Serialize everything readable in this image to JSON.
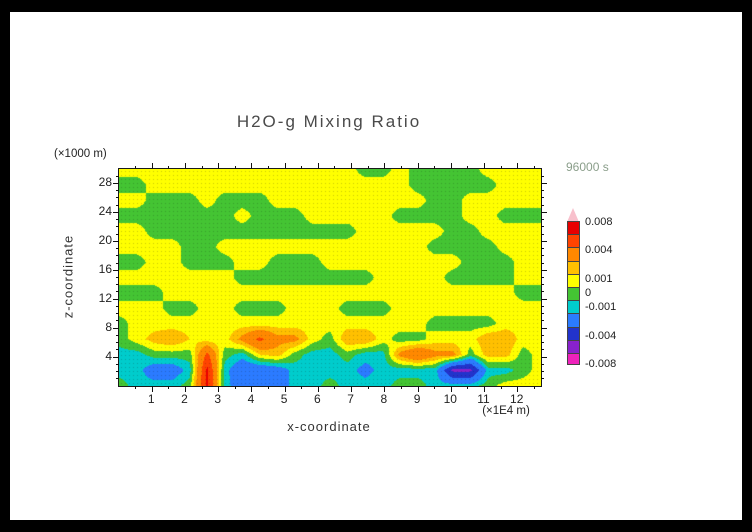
{
  "title": "H2O-g Mixing Ratio",
  "time_label": "96000 s",
  "axes": {
    "x_label": "x-coordinate",
    "x_unit": "(×1E4 m)",
    "y_label": "z-coordinate",
    "y_unit": "(×1000 m)"
  },
  "colors": {
    "paper": "#ffffff",
    "frame": "#000000",
    "axis_ink": "#111111",
    "text_ink": "#333333",
    "time_text": "#8a9e8a"
  },
  "colorbar": {
    "tick_labels": [
      "0.008",
      "0.004",
      "0.001",
      "0",
      "-0.001",
      "-0.004",
      "-0.008"
    ],
    "tick_levels": [
      0.008,
      0.004,
      0.001,
      0,
      -0.001,
      -0.004,
      -0.008
    ]
  },
  "chart_data": {
    "type": "heatmap",
    "title": "H2O-g Mixing Ratio",
    "time": "96000 s",
    "xlabel": "x-coordinate",
    "x_unit": "(×1E4 m)",
    "zlabel": "z-coordinate",
    "z_unit": "(×1000 m)",
    "x_range": [
      0,
      12.7
    ],
    "z_range": [
      0,
      30
    ],
    "x_ticks": [
      1,
      2,
      3,
      4,
      5,
      6,
      7,
      8,
      9,
      10,
      11,
      12
    ],
    "z_ticks": [
      4,
      8,
      12,
      16,
      20,
      24,
      28
    ],
    "grid": true,
    "legend_position": "right",
    "levels": [
      -0.008,
      -0.006,
      -0.004,
      -0.002,
      -0.001,
      0,
      0.001,
      0.002,
      0.004,
      0.006,
      0.008
    ],
    "level_colors": [
      "#EE22BB",
      "#8822CC",
      "#2233CC",
      "#2B7BFF",
      "#00CCCC",
      "#44C433",
      "#FFFF00",
      "#FFC000",
      "#FF8800",
      "#FF4400",
      "#E80000",
      "#F8C0CC"
    ],
    "value_scale": 0.001,
    "rows_top_to_bottom": true,
    "row_z_centers": [
      29,
      27,
      25,
      23,
      21,
      19,
      17,
      15,
      13,
      11,
      9,
      7,
      5,
      3,
      1
    ],
    "values_milli": [
      [
        0.5,
        0.5,
        0.5,
        0.5,
        0.5,
        0.5,
        0.5,
        0.5,
        0.5,
        0.5,
        0.5,
        0.5,
        0.5,
        0.5,
        -0.5,
        -0.5,
        0.5,
        -0.5,
        -0.5,
        -0.5,
        -0.5,
        0.5,
        0.5,
        0.5,
        0.5
      ],
      [
        -0.5,
        -0.5,
        0.5,
        0.5,
        0.5,
        0.5,
        0.5,
        0.5,
        0.5,
        0.5,
        0.5,
        0.5,
        0.5,
        0.5,
        0.5,
        0.5,
        0.5,
        -0.5,
        -0.5,
        -0.5,
        -0.5,
        -0.5,
        0.5,
        0.5,
        0.5
      ],
      [
        0.5,
        0.5,
        -0.5,
        -0.5,
        -0.5,
        0.5,
        -0.5,
        -0.5,
        -0.5,
        0.5,
        0.5,
        0.5,
        0.5,
        0.5,
        0.5,
        0.5,
        0.5,
        0.5,
        -0.5,
        -0.5,
        0.5,
        0.5,
        0.5,
        0.5,
        0.5
      ],
      [
        -0.5,
        -0.5,
        -0.5,
        -0.5,
        -0.5,
        -0.5,
        -0.5,
        0.5,
        -0.5,
        -0.5,
        -0.5,
        0.5,
        0.5,
        0.5,
        0.5,
        0.5,
        -0.5,
        -0.5,
        -0.5,
        -0.5,
        0.5,
        0.5,
        -0.5,
        -0.5,
        -0.5
      ],
      [
        0.5,
        0.5,
        -0.5,
        -0.5,
        -0.5,
        -0.5,
        -0.5,
        -0.5,
        -0.5,
        -0.5,
        -0.5,
        -0.5,
        -0.5,
        -0.5,
        0.5,
        0.5,
        0.5,
        0.5,
        0.5,
        -0.5,
        -0.5,
        0.5,
        0.5,
        0.5,
        0.5
      ],
      [
        0.5,
        0.5,
        0.5,
        0.5,
        -0.5,
        -0.5,
        0.5,
        0.5,
        0.5,
        0.5,
        0.5,
        0.5,
        0.5,
        0.5,
        0.5,
        0.5,
        0.5,
        0.5,
        -0.5,
        -0.5,
        -0.5,
        -0.5,
        0.5,
        0.5,
        0.5
      ],
      [
        -0.5,
        -0.5,
        0.5,
        0.5,
        -0.5,
        -0.5,
        -0.5,
        0.5,
        0.5,
        -0.5,
        -0.5,
        -0.5,
        0.5,
        0.5,
        0.5,
        0.5,
        0.5,
        0.5,
        0.5,
        0.5,
        -0.5,
        -0.5,
        -0.5,
        0.5,
        0.5
      ],
      [
        0.5,
        0.5,
        0.5,
        0.5,
        0.5,
        0.5,
        0.5,
        -0.5,
        -0.5,
        -0.5,
        -0.5,
        -0.5,
        -0.5,
        -0.5,
        -0.5,
        0.5,
        0.5,
        0.5,
        0.5,
        -0.5,
        -0.5,
        -0.5,
        -0.5,
        0.5,
        0.5
      ],
      [
        -0.5,
        -0.5,
        -0.5,
        0.5,
        0.5,
        0.5,
        0.5,
        0.5,
        0.5,
        0.5,
        0.5,
        0.5,
        0.5,
        0.5,
        0.5,
        0.5,
        0.5,
        0.5,
        0.5,
        0.5,
        0.5,
        0.5,
        0.5,
        -0.5,
        -0.5
      ],
      [
        0.5,
        0.5,
        0.5,
        -0.5,
        -0.5,
        0.5,
        0.5,
        -0.5,
        -0.5,
        -0.5,
        0.5,
        0.5,
        0.5,
        -0.5,
        -0.5,
        -0.5,
        0.5,
        0.5,
        0.5,
        0.5,
        0.5,
        0.5,
        0.5,
        0.5,
        0.5
      ],
      [
        -0.5,
        0.5,
        0.5,
        0.5,
        0.5,
        0.5,
        0.5,
        0.5,
        0.5,
        0.5,
        0.5,
        0.5,
        0.5,
        0.5,
        0.5,
        0.5,
        0.5,
        0.5,
        -0.5,
        -0.5,
        -0.5,
        -0.5,
        0.5,
        0.5,
        0.5
      ],
      [
        -0.5,
        0.5,
        1.5,
        2.0,
        1.0,
        0.5,
        0.5,
        2.5,
        4.5,
        2.5,
        2.5,
        0.5,
        -0.5,
        2.0,
        2.0,
        0.5,
        -0.5,
        -0.5,
        0.5,
        0.5,
        0.5,
        2.0,
        2.0,
        0.5,
        0.5
      ],
      [
        -1.5,
        -1.5,
        -0.5,
        -0.5,
        -0.5,
        4.5,
        -0.5,
        -1.5,
        1.0,
        1.5,
        -0.5,
        -1.5,
        -1.5,
        -0.5,
        -1.5,
        -1.5,
        2.5,
        4.0,
        2.5,
        2.5,
        -0.5,
        1.5,
        1.5,
        -0.5,
        0.5
      ],
      [
        -1.5,
        -1.5,
        -3,
        -3,
        -1.5,
        6.5,
        -1.5,
        -3.5,
        -3.5,
        -3,
        -1.5,
        -1.5,
        -1.5,
        -1.5,
        -2.5,
        -1.5,
        -1.5,
        -1.5,
        -1.5,
        -6.5,
        -6.5,
        -1.5,
        -1.5,
        -0.5,
        0.5
      ],
      [
        -0.5,
        -1.5,
        -1.5,
        -1.5,
        -0.5,
        6.5,
        -1.5,
        -3,
        -3.5,
        -3,
        -1.5,
        -1.5,
        -0.5,
        -1.5,
        -1.5,
        -1.5,
        -0.5,
        -0.5,
        -1.5,
        -1.5,
        -1.5,
        -0.5,
        0.5,
        0.5,
        0.5
      ]
    ]
  }
}
